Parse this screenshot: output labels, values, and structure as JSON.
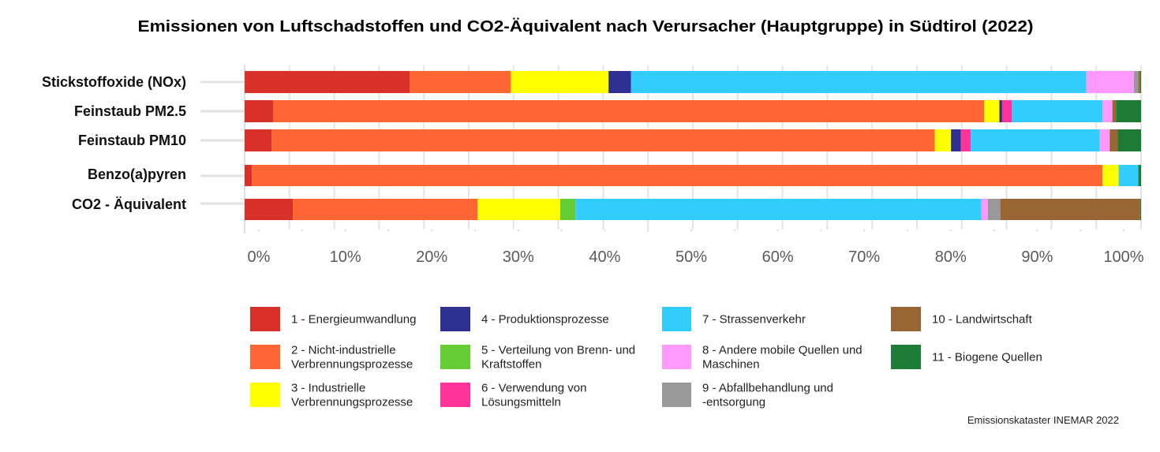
{
  "chart_data": {
    "type": "bar",
    "orientation": "horizontal",
    "stacking": "percent",
    "title": "Emissionen von Luftschadstoffen und CO2-Äquivalent nach Verursacher (Hauptgruppe) in Südtirol (2022)",
    "xlabel": "",
    "ylabel": "",
    "xlim": [
      0,
      100
    ],
    "grid": true,
    "legend": "bottom",
    "categories": [
      "Stickstoffoxide (NOx)",
      "Feinstaub PM2.5",
      "Feinstaub PM10",
      "Benzo(a)pyren",
      "CO2 - Äquivalent"
    ],
    "xticks": [
      "0%",
      "10%",
      "20%",
      "30%",
      "40%",
      "50%",
      "60%",
      "70%",
      "80%",
      "90%",
      "100%"
    ],
    "series": [
      {
        "name": "1 - Energieumwandlung",
        "legend_lines": [
          "1 - Energieumwandlung"
        ],
        "color": "#d7312a",
        "values": [
          18.4,
          3.2,
          3.0,
          0.8,
          5.4
        ]
      },
      {
        "name": "2 - Nicht-industrielle Verbrennungsprozesse",
        "legend_lines": [
          "2 - Nicht-industrielle",
          "Verbrennungsprozesse"
        ],
        "color": "#ff6633",
        "values": [
          11.3,
          79.3,
          74.0,
          94.9,
          20.6
        ]
      },
      {
        "name": "3 - Industrielle Verbrennungsprozesse",
        "legend_lines": [
          "3 - Industrielle",
          "Verbrennungsprozesse"
        ],
        "color": "#ffff00",
        "values": [
          10.9,
          1.7,
          1.8,
          1.8,
          9.2
        ]
      },
      {
        "name": "4 - Produktionsprozesse",
        "legend_lines": [
          "4 - Produktionsprozesse"
        ],
        "color": "#2e3192",
        "values": [
          2.5,
          0.3,
          1.1,
          0,
          0
        ]
      },
      {
        "name": "5 - Verteilung von Brenn- und Kraftstoffen",
        "legend_lines": [
          "5 - Verteilung von Brenn- und",
          "Kraftstoffen"
        ],
        "color": "#66cc33",
        "values": [
          0,
          0,
          0,
          0,
          1.7
        ]
      },
      {
        "name": "6 - Verwendung von Lösungsmitteln",
        "legend_lines": [
          "6 - Verwendung von",
          "Lösungsmitteln"
        ],
        "color": "#ff3399",
        "values": [
          0,
          1.1,
          1.1,
          0,
          0
        ]
      },
      {
        "name": "7 - Strassenverkehr",
        "legend_lines": [
          "7 - Strassenverkehr"
        ],
        "color": "#33ccff",
        "values": [
          50.8,
          10.1,
          14.4,
          2.2,
          45.3
        ]
      },
      {
        "name": "8 - Andere mobile Quellen und Maschinen",
        "legend_lines": [
          "8 - Andere mobile Quellen und",
          "Maschinen"
        ],
        "color": "#ff99ff",
        "values": [
          5.3,
          1.1,
          1.1,
          0,
          0.7
        ]
      },
      {
        "name": "9 - Abfallbehandlung und -entsorgung",
        "legend_lines": [
          "9 - Abfallbehandlung und",
          "-entsorgung"
        ],
        "color": "#999999",
        "values": [
          0.5,
          0,
          0,
          0,
          1.4
        ]
      },
      {
        "name": "10 - Landwirtschaft",
        "legend_lines": [
          "10 - Landwirtschaft"
        ],
        "color": "#996633",
        "values": [
          0.2,
          0.4,
          0.9,
          0,
          15.6
        ]
      },
      {
        "name": "11 - Biogene Quellen",
        "legend_lines": [
          "11 - Biogene Quellen"
        ],
        "color": "#1e7b36",
        "values": [
          0.1,
          2.8,
          2.6,
          0.3,
          0.1
        ]
      }
    ],
    "source": "Emissionskataster INEMAR 2022"
  }
}
